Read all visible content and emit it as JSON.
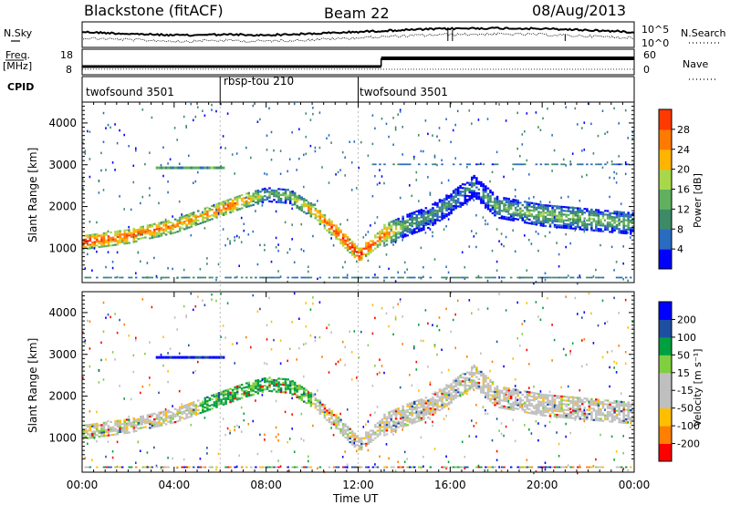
{
  "header": {
    "station": "Blackstone (fitACF)",
    "beam": "Beam 22",
    "date": "08/Aug/2013"
  },
  "summary_panel": {
    "nsky_label": "N.Sky",
    "nsearch_label": "N.Search",
    "freq_label_line1": "Freq.",
    "freq_label_line2": "[MHz]",
    "nave_label": "Nave",
    "cpid_label": "CPID",
    "noise_ticks": [
      "10^5",
      "10^0"
    ],
    "freq_ticks": [
      "18",
      "8"
    ],
    "nave_ticks": [
      "60",
      "0"
    ]
  },
  "cpid_segments": [
    {
      "label": "twofsound 3501",
      "start_hour": 0,
      "end_hour": 6
    },
    {
      "label": "rbsp-tou 210",
      "start_hour": 6,
      "end_hour": 12
    },
    {
      "label": "twofsound 3501",
      "start_hour": 12,
      "end_hour": 24
    }
  ],
  "colors": {
    "power": [
      "#0000ff",
      "#2a6bc2",
      "#3d8a66",
      "#60b060",
      "#a8d84a",
      "#ffb400",
      "#ff7a00",
      "#ff3a00",
      "#ff0000"
    ],
    "velocity": [
      "#ff0000",
      "#ff7f00",
      "#ffbf00",
      "#bfbfbf",
      "#bfbfbf",
      "#7fcf3f",
      "#00a040",
      "#1f4fa0",
      "#0000ff"
    ]
  },
  "chart_data": [
    {
      "type": "heatmap",
      "panel": "power",
      "xlabel": "",
      "ylabel": "Slant Range [km]",
      "xlim": [
        0,
        24
      ],
      "ylim": [
        180,
        4500
      ],
      "ytick_labels": [
        "1000",
        "2000",
        "3000",
        "4000"
      ],
      "colorbar": {
        "label": "Power [dB]",
        "tick_labels": [
          "4",
          "8",
          "12",
          "16",
          "20",
          "24",
          "28"
        ],
        "range": [
          0,
          30
        ]
      },
      "features": [
        {
          "description": "main scatter band",
          "hours": [
            0,
            2,
            4,
            5,
            6,
            7,
            8,
            9,
            10,
            11,
            12,
            13,
            14,
            15,
            16,
            17,
            18,
            20,
            22,
            24
          ],
          "range_km": [
            1150,
            1300,
            1550,
            1750,
            1950,
            2150,
            2300,
            2250,
            1900,
            1400,
            850,
            1300,
            1550,
            1750,
            2100,
            2500,
            2000,
            1800,
            1700,
            1600
          ],
          "power_db": [
            26,
            24,
            22,
            20,
            24,
            22,
            12,
            14,
            22,
            26,
            28,
            24,
            12,
            10,
            10,
            8,
            12,
            14,
            14,
            12
          ]
        }
      ]
    },
    {
      "type": "heatmap",
      "panel": "velocity",
      "xlabel": "Time UT",
      "ylabel": "Slant Range [km]",
      "xlim": [
        0,
        24
      ],
      "ylim": [
        180,
        4500
      ],
      "xtick_labels": [
        "00:00",
        "04:00",
        "08:00",
        "12:00",
        "16:00",
        "20:00",
        "00:00"
      ],
      "ytick_labels": [
        "1000",
        "2000",
        "3000",
        "4000"
      ],
      "colorbar": {
        "label": "Velocity [m s⁻¹]",
        "tick_labels": [
          "200",
          "100",
          "50",
          "15",
          "-15",
          "-50",
          "-100",
          "-200"
        ],
        "range": [
          -250,
          250
        ]
      }
    }
  ]
}
